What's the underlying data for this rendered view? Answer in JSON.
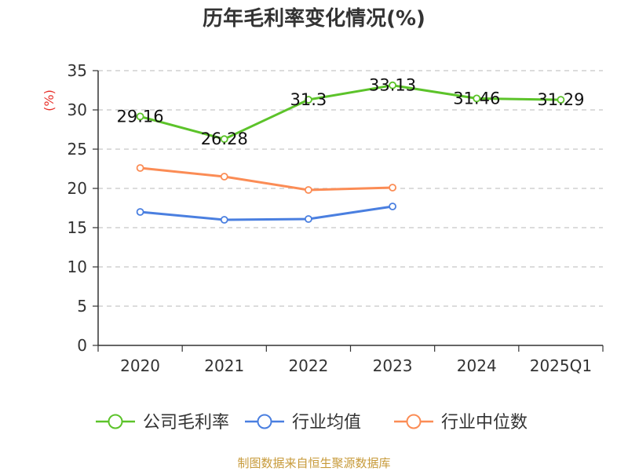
{
  "colors": {
    "series": [
      "#5cc32a",
      "#4a7fe0",
      "#fb8c55"
    ],
    "axis": "#333333",
    "grid": "#c8c8c8",
    "ylabel": "#e8322c",
    "source": "#c79a3a"
  },
  "footer": {
    "source": "制图数据来自恒生聚源数据库"
  },
  "chart_data": {
    "type": "line",
    "title": "历年毛利率变化情况(%)",
    "ylabel": "(%)",
    "xlabel": "",
    "ylim": [
      0,
      35
    ],
    "yticks": [
      0,
      5,
      10,
      15,
      20,
      25,
      30,
      35
    ],
    "categories": [
      "2020",
      "2021",
      "2022",
      "2023",
      "2024",
      "2025Q1"
    ],
    "grid": true,
    "legend_position": "bottom",
    "series": [
      {
        "name": "公司毛利率",
        "values": [
          29.16,
          26.28,
          31.3,
          33.13,
          31.46,
          31.29
        ],
        "labels": [
          "29.16",
          "26.28",
          "31.3",
          "33.13",
          "31.46",
          "31.29"
        ]
      },
      {
        "name": "行业均值",
        "values": [
          17.0,
          16.0,
          16.1,
          17.7,
          null,
          null
        ]
      },
      {
        "name": "行业中位数",
        "values": [
          22.6,
          21.5,
          19.8,
          20.1,
          null,
          null
        ]
      }
    ]
  }
}
